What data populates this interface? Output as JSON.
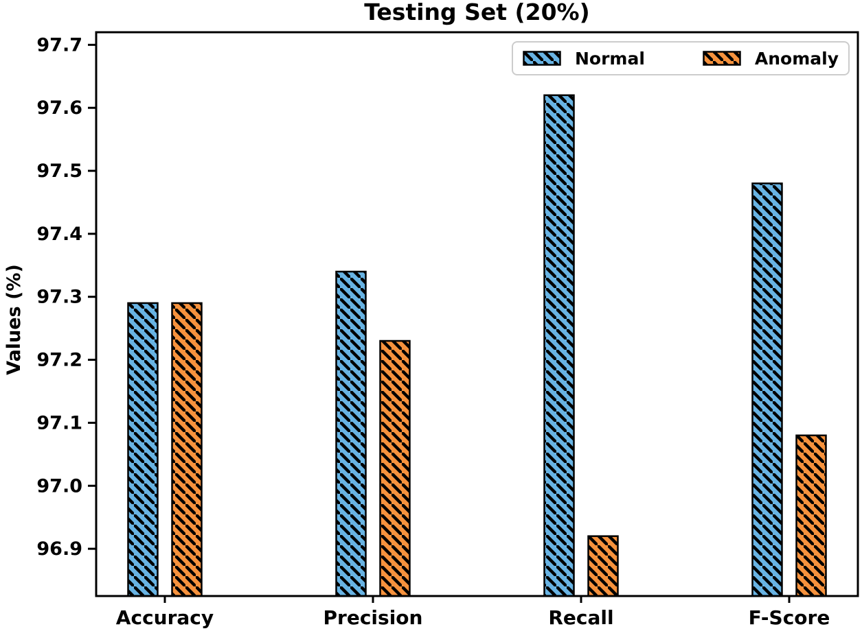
{
  "chart_data": {
    "type": "bar",
    "title": "Testing Set (20%)",
    "xlabel": "",
    "ylabel": "Values (%)",
    "categories": [
      "Accuracy",
      "Precision",
      "Recall",
      "F-Score"
    ],
    "series": [
      {
        "name": "Normal",
        "color": "#68b3e3",
        "values": [
          97.29,
          97.34,
          97.62,
          97.48
        ]
      },
      {
        "name": "Anomaly",
        "color": "#f6923d",
        "values": [
          97.29,
          97.23,
          96.92,
          97.08
        ]
      }
    ],
    "ylim": [
      96.825,
      97.72
    ],
    "yticks": [
      96.9,
      97.0,
      97.1,
      97.2,
      97.3,
      97.4,
      97.5,
      97.6,
      97.7
    ],
    "grid": false,
    "legend_position": "upper right",
    "hatch_style": "\\\\",
    "bar_edge_color": "#000000"
  }
}
